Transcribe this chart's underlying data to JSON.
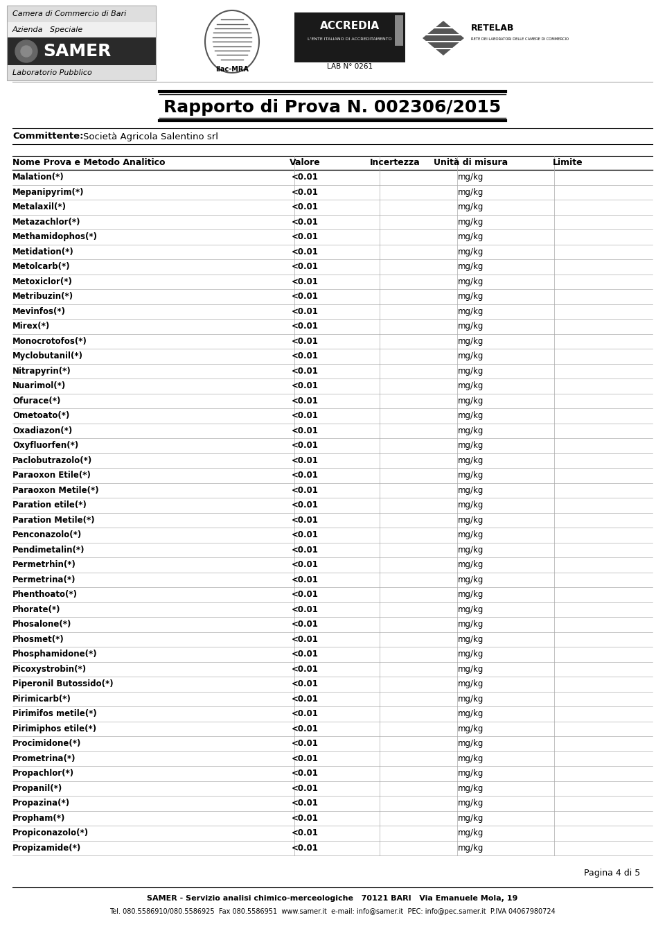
{
  "title": "Rapporto di Prova N. 002306/2015",
  "committente_label": "Committente:",
  "committente_value": "Società Agricola Salentino srl",
  "col_headers": [
    "Nome Prova e Metodo Analitico",
    "Valore",
    "Incertezza",
    "Unità di misura",
    "Limite"
  ],
  "rows": [
    [
      "Malation(*)",
      "<0.01",
      "",
      "mg/kg",
      ""
    ],
    [
      "Mepanipyrim(*)",
      "<0.01",
      "",
      "mg/kg",
      ""
    ],
    [
      "Metalaxil(*)",
      "<0.01",
      "",
      "mg/kg",
      ""
    ],
    [
      "Metazachlor(*)",
      "<0.01",
      "",
      "mg/kg",
      ""
    ],
    [
      "Methamidophos(*)",
      "<0.01",
      "",
      "mg/kg",
      ""
    ],
    [
      "Metidation(*)",
      "<0.01",
      "",
      "mg/kg",
      ""
    ],
    [
      "Metolcarb(*)",
      "<0.01",
      "",
      "mg/kg",
      ""
    ],
    [
      "Metoxiclor(*)",
      "<0.01",
      "",
      "mg/kg",
      ""
    ],
    [
      "Metribuzin(*)",
      "<0.01",
      "",
      "mg/kg",
      ""
    ],
    [
      "Mevinfos(*)",
      "<0.01",
      "",
      "mg/kg",
      ""
    ],
    [
      "Mirex(*)",
      "<0.01",
      "",
      "mg/kg",
      ""
    ],
    [
      "Monocrotofos(*)",
      "<0.01",
      "",
      "mg/kg",
      ""
    ],
    [
      "Myclobutanil(*)",
      "<0.01",
      "",
      "mg/kg",
      ""
    ],
    [
      "Nitrapyrin(*)",
      "<0.01",
      "",
      "mg/kg",
      ""
    ],
    [
      "Nuarimol(*)",
      "<0.01",
      "",
      "mg/kg",
      ""
    ],
    [
      "Ofurace(*)",
      "<0.01",
      "",
      "mg/kg",
      ""
    ],
    [
      "Ometoato(*)",
      "<0.01",
      "",
      "mg/kg",
      ""
    ],
    [
      "Oxadiazon(*)",
      "<0.01",
      "",
      "mg/kg",
      ""
    ],
    [
      "Oxyfluorfen(*)",
      "<0.01",
      "",
      "mg/kg",
      ""
    ],
    [
      "Paclobutrazolo(*)",
      "<0.01",
      "",
      "mg/kg",
      ""
    ],
    [
      "Paraoxon Etile(*)",
      "<0.01",
      "",
      "mg/kg",
      ""
    ],
    [
      "Paraoxon Metile(*)",
      "<0.01",
      "",
      "mg/kg",
      ""
    ],
    [
      "Paration etile(*)",
      "<0.01",
      "",
      "mg/kg",
      ""
    ],
    [
      "Paration Metile(*)",
      "<0.01",
      "",
      "mg/kg",
      ""
    ],
    [
      "Penconazolo(*)",
      "<0.01",
      "",
      "mg/kg",
      ""
    ],
    [
      "Pendimetalin(*)",
      "<0.01",
      "",
      "mg/kg",
      ""
    ],
    [
      "Permetrhin(*)",
      "<0.01",
      "",
      "mg/kg",
      ""
    ],
    [
      "Permetrina(*)",
      "<0.01",
      "",
      "mg/kg",
      ""
    ],
    [
      "Phenthoato(*)",
      "<0.01",
      "",
      "mg/kg",
      ""
    ],
    [
      "Phorate(*)",
      "<0.01",
      "",
      "mg/kg",
      ""
    ],
    [
      "Phosalone(*)",
      "<0.01",
      "",
      "mg/kg",
      ""
    ],
    [
      "Phosmet(*)",
      "<0.01",
      "",
      "mg/kg",
      ""
    ],
    [
      "Phosphamidone(*)",
      "<0.01",
      "",
      "mg/kg",
      ""
    ],
    [
      "Picoxystrobin(*)",
      "<0.01",
      "",
      "mg/kg",
      ""
    ],
    [
      "Piperonil Butossido(*)",
      "<0.01",
      "",
      "mg/kg",
      ""
    ],
    [
      "Pirimicarb(*)",
      "<0.01",
      "",
      "mg/kg",
      ""
    ],
    [
      "Pirimifos metile(*)",
      "<0.01",
      "",
      "mg/kg",
      ""
    ],
    [
      "Pirimiphos etile(*)",
      "<0.01",
      "",
      "mg/kg",
      ""
    ],
    [
      "Procimidone(*)",
      "<0.01",
      "",
      "mg/kg",
      ""
    ],
    [
      "Prometrina(*)",
      "<0.01",
      "",
      "mg/kg",
      ""
    ],
    [
      "Propachlor(*)",
      "<0.01",
      "",
      "mg/kg",
      ""
    ],
    [
      "Propanil(*)",
      "<0.01",
      "",
      "mg/kg",
      ""
    ],
    [
      "Propazina(*)",
      "<0.01",
      "",
      "mg/kg",
      ""
    ],
    [
      "Propham(*)",
      "<0.01",
      "",
      "mg/kg",
      ""
    ],
    [
      "Propiconazolo(*)",
      "<0.01",
      "",
      "mg/kg",
      ""
    ],
    [
      "Propizamide(*)",
      "<0.01",
      "",
      "mg/kg",
      ""
    ]
  ],
  "footer_text": "SAMER - Servizio analisi chimico-merceologiche   70121 BARI   Via Emanuele Mola, 19",
  "footer_text2": "Tel. 080.5586910/080.5586925  Fax 080.5586951  www.samer.it  e-mail: info@samer.it  PEC: info@pec.samer.it  P.IVA 04067980724",
  "page_text": "Pagina 4 di 5",
  "bg_color": "#ffffff"
}
